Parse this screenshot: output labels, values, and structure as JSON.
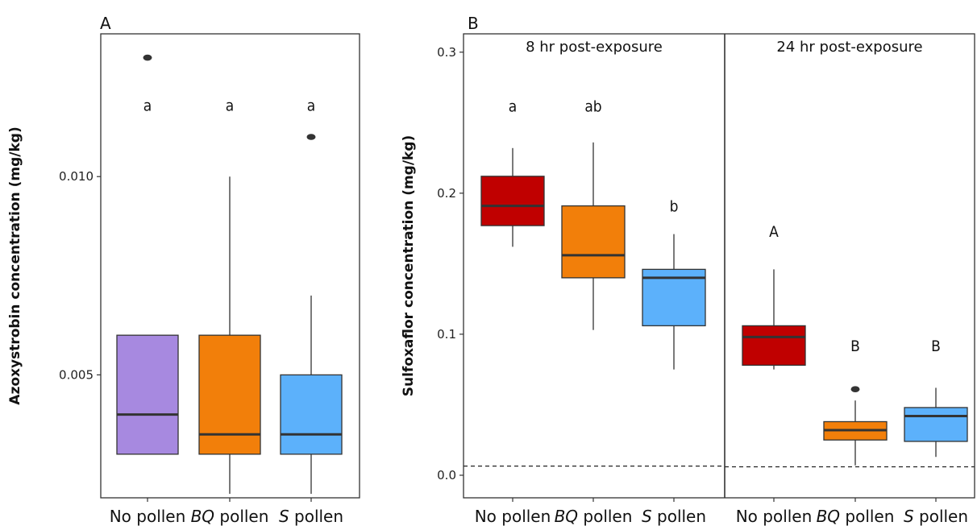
{
  "chart_data": [
    {
      "panel_label": "A",
      "type": "box",
      "ylabel": "Azoxystrobin concentration (mg/kg)",
      "yticks": [
        "0.005",
        "0.010"
      ],
      "ylim": [
        0.0019,
        0.0136
      ],
      "categories": [
        {
          "pre": "No pollen",
          "it": "",
          "post": ""
        },
        {
          "pre": "",
          "it": "BQ",
          "post": " pollen"
        },
        {
          "pre": "",
          "it": "S",
          "post": " pollen"
        }
      ],
      "boxes": [
        {
          "min": 0.003,
          "q1": 0.003,
          "median": 0.004,
          "q3": 0.006,
          "max": 0.006,
          "outliers": [
            0.013
          ],
          "letter": "a",
          "color": "#a789e0"
        },
        {
          "min": 0.002,
          "q1": 0.003,
          "median": 0.0035,
          "q3": 0.006,
          "max": 0.01,
          "outliers": [],
          "letter": "a",
          "color": "#f27f0a"
        },
        {
          "min": 0.002,
          "q1": 0.003,
          "median": 0.0035,
          "q3": 0.005,
          "max": 0.007,
          "outliers": [
            0.011
          ],
          "letter": "a",
          "color": "#5cb1fb"
        }
      ],
      "letter_y": 0.0118
    },
    {
      "panel_label": "B",
      "type": "box",
      "ylabel": "Sulfoxaflor concentration (mg/kg)",
      "yticks": [
        "0.0",
        "0.1",
        "0.2",
        "0.3"
      ],
      "ylim": [
        -0.016,
        0.313
      ],
      "facets": [
        {
          "title": "8 hr post-exposure",
          "categories": [
            {
              "pre": "No pollen",
              "it": "",
              "post": ""
            },
            {
              "pre": "",
              "it": "BQ",
              "post": " pollen"
            },
            {
              "pre": "",
              "it": "S",
              "post": " pollen"
            }
          ],
          "boxes": [
            {
              "min": 0.162,
              "q1": 0.177,
              "median": 0.191,
              "q3": 0.212,
              "max": 0.232,
              "outliers": [],
              "letter": "a",
              "letter_y": 0.262,
              "color": "#c00000"
            },
            {
              "min": 0.103,
              "q1": 0.14,
              "median": 0.156,
              "q3": 0.191,
              "max": 0.236,
              "outliers": [],
              "letter": "ab",
              "letter_y": 0.262,
              "color": "#f27f0a"
            },
            {
              "min": 0.075,
              "q1": 0.106,
              "median": 0.14,
              "q3": 0.146,
              "max": 0.171,
              "outliers": [],
              "letter": "b",
              "letter_y": 0.191,
              "color": "#5cb1fb"
            }
          ],
          "detection_limit": 0.0065
        },
        {
          "title": "24 hr post-exposure",
          "categories": [
            {
              "pre": "No pollen",
              "it": "",
              "post": ""
            },
            {
              "pre": "",
              "it": "BQ",
              "post": " pollen"
            },
            {
              "pre": "",
              "it": "S",
              "post": " pollen"
            }
          ],
          "boxes": [
            {
              "min": 0.075,
              "q1": 0.078,
              "median": 0.098,
              "q3": 0.106,
              "max": 0.146,
              "outliers": [],
              "letter": "A",
              "letter_y": 0.173,
              "color": "#c00000"
            },
            {
              "min": 0.007,
              "q1": 0.025,
              "median": 0.032,
              "q3": 0.038,
              "max": 0.053,
              "outliers": [
                0.061
              ],
              "letter": "B",
              "letter_y": 0.092,
              "color": "#f27f0a"
            },
            {
              "min": 0.013,
              "q1": 0.024,
              "median": 0.042,
              "q3": 0.048,
              "max": 0.062,
              "outliers": [],
              "letter": "B",
              "letter_y": 0.092,
              "color": "#5cb1fb"
            }
          ],
          "detection_limit": 0.006
        }
      ]
    }
  ]
}
